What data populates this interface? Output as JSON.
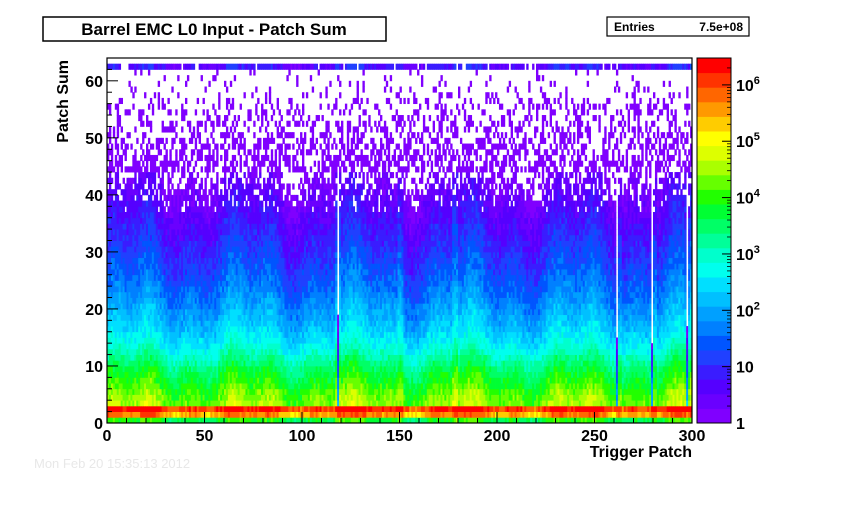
{
  "chart_data": {
    "type": "heatmap",
    "title": "Barrel EMC L0 Input - Patch Sum",
    "xlabel": "Trigger Patch",
    "ylabel": "Patch Sum",
    "xlim": [
      0,
      300
    ],
    "ylim": [
      0,
      64
    ],
    "x_ticks": [
      0,
      50,
      100,
      150,
      200,
      250,
      300
    ],
    "y_ticks": [
      0,
      10,
      20,
      30,
      40,
      50,
      60
    ],
    "z_scale": "log",
    "zlim": [
      1,
      3000000
    ],
    "z_tick_labels": [
      {
        "value": 1,
        "label": "1"
      },
      {
        "value": 10,
        "label": "10"
      },
      {
        "value": 100,
        "label": "10",
        "sup": "2"
      },
      {
        "value": 1000,
        "label": "10",
        "sup": "3"
      },
      {
        "value": 10000,
        "label": "10",
        "sup": "4"
      },
      {
        "value": 100000,
        "label": "10",
        "sup": "5"
      },
      {
        "value": 1000000,
        "label": "10",
        "sup": "6"
      }
    ],
    "stats": {
      "label": "Entries",
      "value": "7.5e+08"
    },
    "bins": {
      "nx": 300,
      "ny": 64
    },
    "profile": {
      "description_free": true,
      "row_levels_log10": [
        3.8,
        5.6,
        6.2,
        4.4,
        4.3,
        4.2,
        4.0,
        3.85,
        3.7,
        3.55,
        3.35,
        3.15,
        2.95,
        2.75,
        2.6,
        2.45,
        2.3,
        2.2,
        2.1,
        2.0,
        1.9,
        1.8,
        1.7,
        1.6,
        1.5,
        1.42,
        1.35,
        1.27,
        1.2,
        1.12,
        1.05,
        0.98,
        0.9,
        0.85,
        0.78,
        0.7,
        0.64,
        0.58,
        0.52,
        0.46,
        0.4,
        0.34,
        0.28,
        0.22,
        0.16,
        0.1,
        0.05,
        0.0,
        0.0,
        0.0,
        0.0,
        0.0,
        0.0,
        0.0,
        0.0,
        0.0,
        0.0,
        0.0,
        0.0,
        0.0,
        0.0,
        0.0,
        0.7,
        0.0
      ],
      "hot_columns": [
        118,
        150,
        178,
        262,
        280,
        300
      ],
      "cold_columns": [
        118,
        261,
        279,
        297
      ]
    },
    "grid": false,
    "legend": "right"
  },
  "palette": [
    "#8000ff",
    "#6a00ff",
    "#5500ff",
    "#3a1cff",
    "#2040ff",
    "#0055ff",
    "#0080ff",
    "#00a0ff",
    "#00c0ff",
    "#00dfff",
    "#00ffee",
    "#00ffcc",
    "#00ff99",
    "#00ff66",
    "#00ff33",
    "#22ff00",
    "#66ff00",
    "#aaff00",
    "#ddff00",
    "#ffff00",
    "#ffcc00",
    "#ff9900",
    "#ff6600",
    "#ff3300",
    "#ff0000"
  ],
  "footer_text": "Mon Feb 20 15:35:13 2012"
}
